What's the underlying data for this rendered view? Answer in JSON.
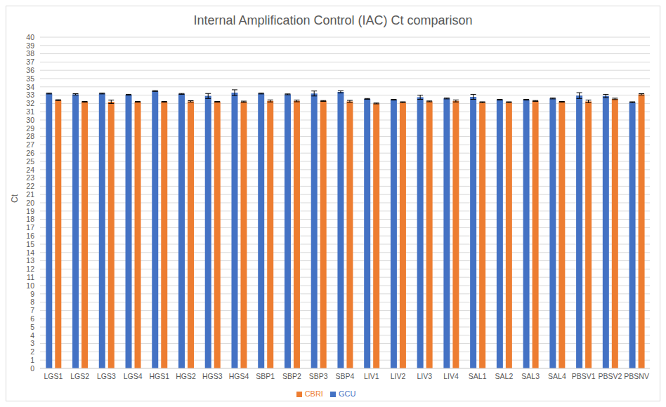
{
  "chart_data": {
    "type": "bar",
    "title": "Internal Amplification Control (IAC) Ct comparison",
    "y_label": "Ct",
    "categories": [
      "LGS1",
      "LGS2",
      "LGS3",
      "LGS4",
      "HGS1",
      "HGS2",
      "HGS3",
      "HGS4",
      "SBP1",
      "SBP2",
      "SBP3",
      "SBP4",
      "LIV1",
      "LIV2",
      "LIV3",
      "LIV4",
      "SAL1",
      "SAL2",
      "SAL3",
      "SAL4",
      "PBSV1",
      "PBSV2",
      "PBSNV"
    ],
    "series": [
      {
        "name": "GCU",
        "color": "#4472c4",
        "values": [
          33.2,
          33.1,
          33.2,
          33.05,
          33.5,
          33.15,
          32.9,
          33.3,
          33.2,
          33.1,
          33.2,
          33.4,
          32.55,
          32.45,
          32.75,
          32.6,
          32.8,
          32.45,
          32.45,
          32.6,
          32.95,
          32.9,
          32.15
        ],
        "errors": [
          0.05,
          0.08,
          0.05,
          0.05,
          0.05,
          0.05,
          0.3,
          0.35,
          0.05,
          0.05,
          0.3,
          0.12,
          0.05,
          0.05,
          0.25,
          0.05,
          0.3,
          0.05,
          0.05,
          0.05,
          0.35,
          0.2,
          0.05
        ]
      },
      {
        "name": "CBRI",
        "color": "#ed7d31",
        "values": [
          32.4,
          32.2,
          32.2,
          32.2,
          32.2,
          32.25,
          32.2,
          32.2,
          32.3,
          32.3,
          32.3,
          32.25,
          32.0,
          32.15,
          32.25,
          32.3,
          32.15,
          32.15,
          32.3,
          32.2,
          32.25,
          32.55,
          33.1
        ],
        "errors": [
          0.05,
          0.05,
          0.2,
          0.05,
          0.05,
          0.08,
          0.05,
          0.08,
          0.12,
          0.1,
          0.05,
          0.12,
          0.05,
          0.05,
          0.05,
          0.12,
          0.05,
          0.05,
          0.05,
          0.05,
          0.15,
          0.08,
          0.08
        ]
      }
    ],
    "ylim": [
      0,
      40
    ],
    "yticks": [
      0,
      1,
      2,
      3,
      4,
      5,
      6,
      7,
      8,
      9,
      10,
      11,
      12,
      13,
      14,
      15,
      16,
      17,
      18,
      19,
      20,
      21,
      22,
      23,
      24,
      25,
      26,
      27,
      28,
      29,
      30,
      31,
      32,
      33,
      34,
      35,
      36,
      37,
      38,
      39,
      40
    ],
    "grid": true,
    "legend": "bottom"
  }
}
